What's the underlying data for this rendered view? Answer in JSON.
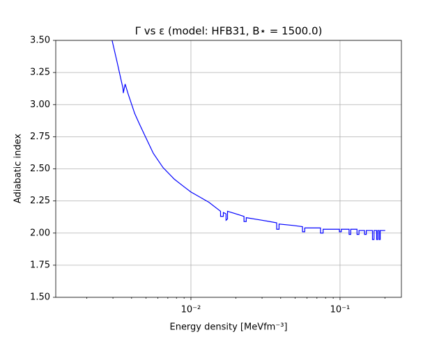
{
  "chart_data": {
    "type": "line",
    "title": "Γ vs ε (model: HFB31, B⋆ = 1500.0)",
    "x_label": "Energy density [MeVfm⁻³]",
    "y_label": "Adiabatic index",
    "x_log": true,
    "grid": true,
    "xlim": [
      0.00124,
      0.258
    ],
    "ylim": [
      1.5,
      3.5
    ],
    "xticks": [
      {
        "value": 0.01,
        "label": "10⁻²"
      },
      {
        "value": 0.1,
        "label": "10⁻¹"
      }
    ],
    "xminorticks": [
      0.002,
      0.003,
      0.004,
      0.005,
      0.006,
      0.007,
      0.008,
      0.009,
      0.02,
      0.03,
      0.04,
      0.05,
      0.06,
      0.07,
      0.08,
      0.09,
      0.2
    ],
    "yticks": [
      {
        "value": 1.5,
        "label": "1.50"
      },
      1.75,
      {
        "value": 2,
        "label": "2.00"
      },
      2.25,
      {
        "value": 2.5,
        "label": "2.50"
      },
      2.75,
      {
        "value": 3,
        "label": "3.00"
      },
      3.25,
      {
        "value": 3.5,
        "label": "3.50"
      }
    ],
    "series": [
      {
        "color": "#0000ff",
        "x": [
          0.00296,
          0.0032,
          0.00345,
          0.0035,
          0.00352,
          0.00362,
          0.0038,
          0.0042,
          0.00451,
          0.005,
          0.0056,
          0.0065,
          0.00773,
          0.009,
          0.01,
          0.0115,
          0.0132,
          0.015,
          0.0158,
          0.0158,
          0.0165,
          0.0165,
          0.0172,
          0.0172,
          0.0176,
          0.0176,
          0.02,
          0.0227,
          0.0227,
          0.0235,
          0.0235,
          0.03,
          0.0376,
          0.0376,
          0.039,
          0.039,
          0.048,
          0.056,
          0.056,
          0.058,
          0.058,
          0.074,
          0.074,
          0.077,
          0.077,
          0.099,
          0.099,
          0.102,
          0.102,
          0.115,
          0.115,
          0.118,
          0.118,
          0.13,
          0.13,
          0.134,
          0.134,
          0.146,
          0.146,
          0.15,
          0.15,
          0.165,
          0.165,
          0.169,
          0.169,
          0.176,
          0.176,
          0.179,
          0.179,
          0.183,
          0.183,
          0.186,
          0.186,
          0.201
        ],
        "values": [
          3.5,
          3.33,
          3.16,
          3.13,
          3.09,
          3.16,
          3.08,
          2.93,
          2.85,
          2.74,
          2.62,
          2.51,
          2.42,
          2.36,
          2.32,
          2.28,
          2.24,
          2.19,
          2.17,
          2.13,
          2.13,
          2.16,
          2.15,
          2.1,
          2.11,
          2.17,
          2.15,
          2.13,
          2.09,
          2.09,
          2.12,
          2.1,
          2.08,
          2.03,
          2.03,
          2.07,
          2.06,
          2.05,
          2.01,
          2.01,
          2.04,
          2.04,
          2,
          2,
          2.03,
          2.03,
          2.01,
          2.01,
          2.03,
          2.03,
          1.99,
          1.99,
          2.03,
          2.03,
          1.99,
          1.99,
          2.02,
          2.02,
          1.99,
          1.99,
          2.02,
          2.02,
          1.95,
          1.95,
          2.02,
          2.02,
          1.95,
          1.95,
          2.02,
          2.02,
          1.95,
          1.95,
          2.02,
          2.02
        ]
      }
    ]
  }
}
